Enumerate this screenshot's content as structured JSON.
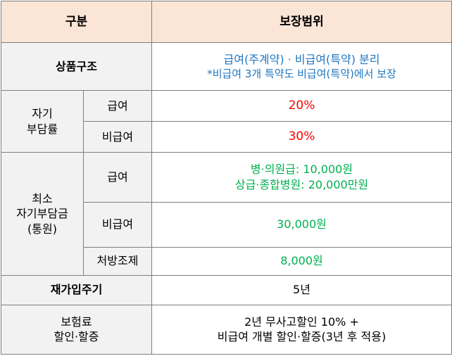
{
  "header": {
    "col1": "구분",
    "col2": "보장범위"
  },
  "rows": {
    "product": {
      "label": "상품구조",
      "line1": "급여(주계약) · 비급여(특약) 분리",
      "line2": "*비급여 3개 특약도 비급여(특약)에서 보장"
    },
    "copay": {
      "label_line1": "자기",
      "label_line2": "부담률",
      "covered_label": "급여",
      "covered_value": "20%",
      "noncovered_label": "비급여",
      "noncovered_value": "30%"
    },
    "minimum": {
      "label_line1": "최소",
      "label_line2": "자기부담금",
      "label_line3": "(통원)",
      "covered_label": "급여",
      "covered_line1": "병·의원급: 10,000원",
      "covered_line2": "상급·종합병원: 20,000만원",
      "noncovered_label": "비급여",
      "noncovered_value": "30,000원",
      "rx_label": "처방조제",
      "rx_value": "8,000원"
    },
    "reentry": {
      "label": "재가입주기",
      "value": "5년"
    },
    "premium": {
      "label_line1": "보험료",
      "label_line2": "할인·할증",
      "line1": "2년 무사고할인 10% +",
      "line2": "비급여 개별 할인·할증(3년 후 적용)"
    }
  }
}
